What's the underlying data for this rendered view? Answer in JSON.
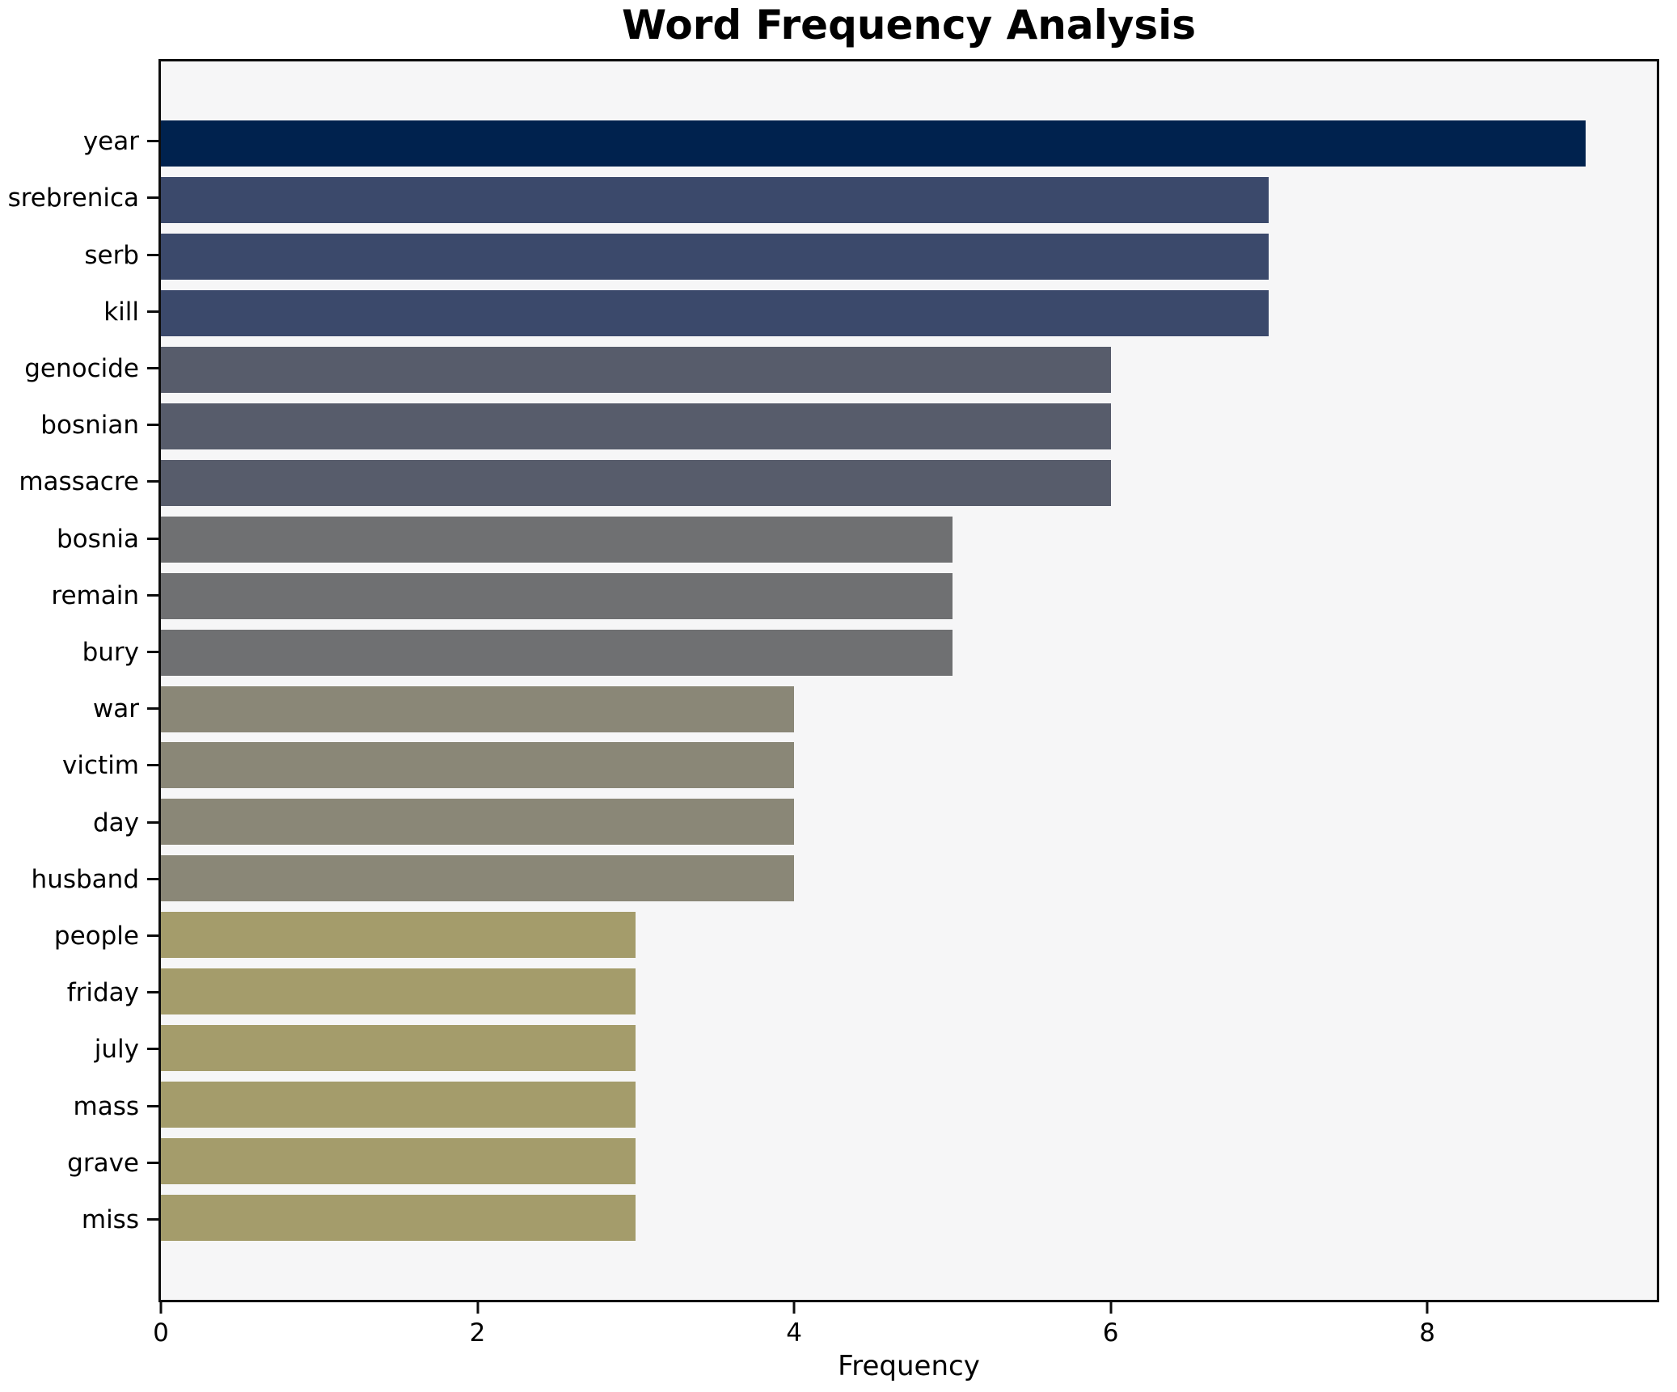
{
  "figure": {
    "background": "#ffffff",
    "plot_background": "#f6f6f7",
    "spine_color": "#0d0d0d",
    "text_color": "#000000"
  },
  "chart_data": {
    "type": "bar",
    "orientation": "horizontal",
    "title": "Word Frequency Analysis",
    "xlabel": "Frequency",
    "ylabel": "",
    "categories": [
      "year",
      "srebrenica",
      "serb",
      "kill",
      "genocide",
      "bosnian",
      "massacre",
      "bosnia",
      "remain",
      "bury",
      "war",
      "victim",
      "day",
      "husband",
      "people",
      "friday",
      "july",
      "mass",
      "grave",
      "miss"
    ],
    "values": [
      9,
      7,
      7,
      7,
      6,
      6,
      6,
      5,
      5,
      5,
      4,
      4,
      4,
      4,
      3,
      3,
      3,
      3,
      3,
      3
    ],
    "bar_colors": [
      "#00224e",
      "#3b496b",
      "#3b496b",
      "#3b496b",
      "#575c6b",
      "#575c6b",
      "#575c6b",
      "#6f7072",
      "#6f7072",
      "#6f7072",
      "#8a8777",
      "#8a8777",
      "#8a8777",
      "#8a8777",
      "#a49c6b",
      "#a49c6b",
      "#a49c6b",
      "#a49c6b",
      "#a49c6b",
      "#a49c6b"
    ],
    "xlim": [
      0,
      9.45
    ],
    "xticks": [
      0,
      2,
      4,
      6,
      8
    ],
    "grid": false,
    "legend_position": "none"
  }
}
